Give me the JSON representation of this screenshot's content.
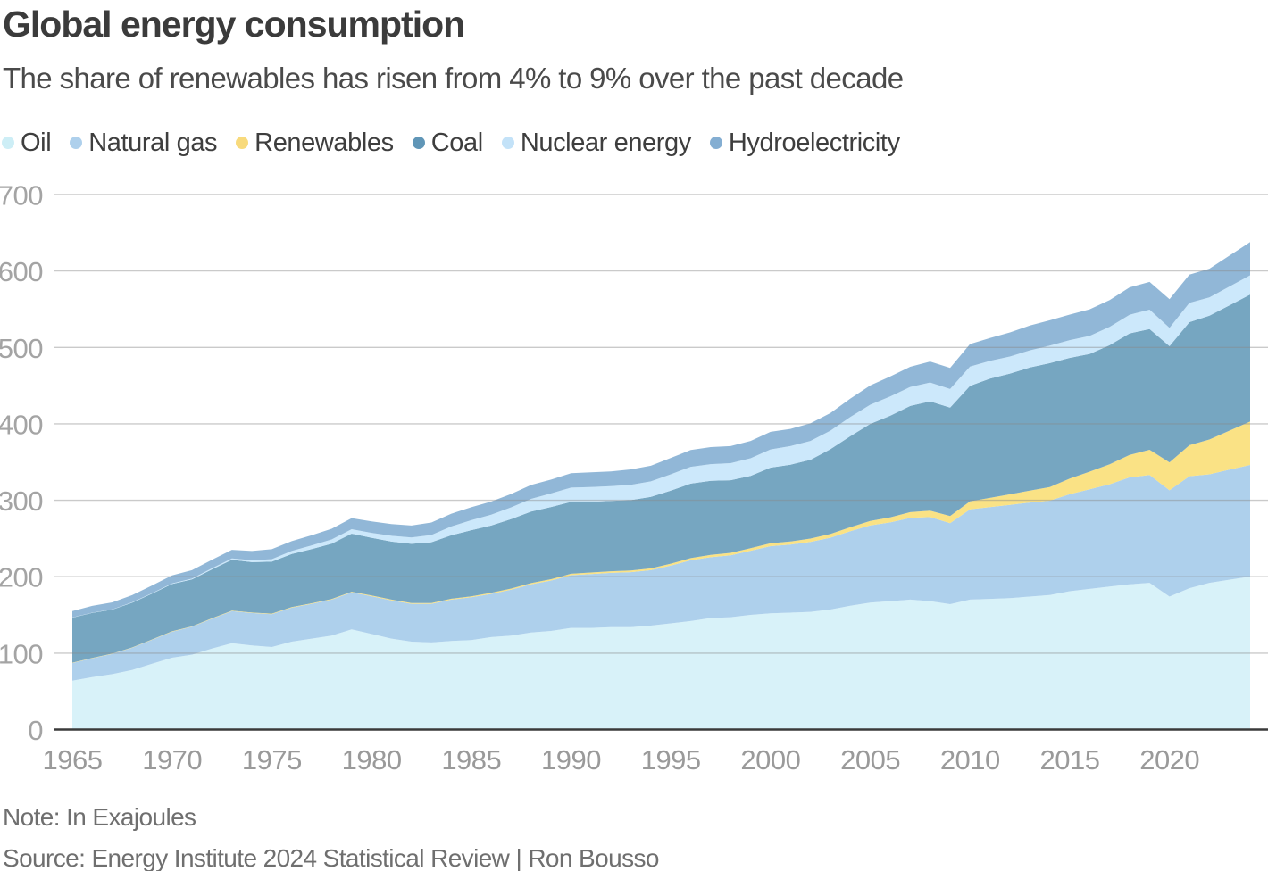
{
  "header": {
    "title": "Global energy consumption",
    "subtitle": "The share of renewables has risen from 4% to 9% over the past decade"
  },
  "legend": [
    {
      "label": "Oil",
      "color": "#cdeef6"
    },
    {
      "label": "Natural gas",
      "color": "#aed0ec"
    },
    {
      "label": "Renewables",
      "color": "#f8da7c"
    },
    {
      "label": "Coal",
      "color": "#6096b7"
    },
    {
      "label": "Nuclear energy",
      "color": "#c3e2f8"
    },
    {
      "label": "Hydroelectricity",
      "color": "#84aed2"
    }
  ],
  "footer": {
    "note": "Note: In Exajoules",
    "source": "Source: Energy Institute 2024 Statistical Review | Ron Bousso"
  },
  "chart_data": {
    "type": "area",
    "stacked": true,
    "title": "Global energy consumption",
    "unit": "Exajoules",
    "ylabel": "",
    "xlabel": "",
    "grid": "horizontal",
    "legend_position": "top",
    "ylim": [
      0,
      700
    ],
    "yticks": [
      0,
      100,
      200,
      300,
      400,
      500,
      600,
      700
    ],
    "xticks": [
      1965,
      1970,
      1975,
      1980,
      1985,
      1990,
      1995,
      2000,
      2005,
      2010,
      2015,
      2020
    ],
    "x": [
      1965,
      1966,
      1967,
      1968,
      1969,
      1970,
      1971,
      1972,
      1973,
      1974,
      1975,
      1976,
      1977,
      1978,
      1979,
      1980,
      1981,
      1982,
      1983,
      1984,
      1985,
      1986,
      1987,
      1988,
      1989,
      1990,
      1991,
      1992,
      1993,
      1994,
      1995,
      1996,
      1997,
      1998,
      1999,
      2000,
      2001,
      2002,
      2003,
      2004,
      2005,
      2006,
      2007,
      2008,
      2009,
      2010,
      2011,
      2012,
      2013,
      2014,
      2015,
      2016,
      2017,
      2018,
      2019,
      2020,
      2021,
      2022,
      2023
    ],
    "series": [
      {
        "name": "Oil",
        "color": "#d8f2f9",
        "values": [
          64,
          68.5,
          72.5,
          78,
          86,
          94,
          98,
          106,
          113,
          110,
          108,
          115,
          119,
          123,
          131,
          125,
          119,
          115,
          114,
          116,
          117,
          121,
          123,
          127,
          129,
          133,
          133,
          134,
          134,
          136,
          139,
          142,
          146,
          147,
          150,
          152,
          153,
          154,
          157,
          162,
          166,
          168,
          170,
          168,
          164,
          170,
          171,
          172,
          174,
          176,
          181,
          184,
          187,
          190,
          192,
          174,
          185,
          192,
          196
        ]
      },
      {
        "name": "Natural gas",
        "color": "#aed0ec",
        "values": [
          23,
          24.8,
          26.5,
          29,
          31.5,
          34,
          36.5,
          39,
          42,
          42.5,
          43,
          44.5,
          45.5,
          47,
          48.5,
          49.5,
          50,
          49.5,
          50.5,
          54,
          56,
          56.5,
          60,
          63,
          66,
          69,
          70.5,
          71,
          72,
          72.5,
          75.5,
          79.5,
          79.5,
          81,
          84,
          88,
          89,
          91.5,
          94,
          97.5,
          101,
          103,
          107,
          110,
          106,
          118,
          120,
          122,
          123,
          123.5,
          127,
          130.5,
          134,
          140,
          141,
          139,
          146.5,
          142,
          144
        ]
      },
      {
        "name": "Renewables",
        "color": "#fae285",
        "values": [
          0.4,
          0.4,
          0.4,
          0.45,
          0.45,
          0.5,
          0.5,
          0.55,
          0.55,
          0.6,
          0.65,
          0.7,
          0.7,
          0.75,
          0.8,
          0.9,
          0.95,
          1,
          1.1,
          1.2,
          1.3,
          1.4,
          1.5,
          1.6,
          1.7,
          1.9,
          2,
          2.1,
          2.2,
          2.4,
          2.6,
          2.8,
          3,
          3.2,
          3.4,
          3.7,
          4,
          4.4,
          4.8,
          5.3,
          5.9,
          6.6,
          7.4,
          8.3,
          9.3,
          10.6,
          12.1,
          13.8,
          15.7,
          17.9,
          20.3,
          23,
          26,
          29.3,
          33,
          36.6,
          40.5,
          45.5,
          51
        ]
      },
      {
        "name": "Coal",
        "color": "#76a6c1",
        "values": [
          59,
          59,
          57.5,
          58.5,
          60,
          62,
          61.5,
          64,
          66.5,
          66,
          68,
          69.5,
          71,
          72.5,
          76,
          75.5,
          76,
          77.5,
          79.5,
          83,
          86.5,
          88,
          91,
          93.5,
          94.5,
          94,
          92.5,
          92,
          92,
          93.5,
          95.5,
          97.5,
          97,
          95,
          94.5,
          99,
          100.5,
          103,
          111,
          119,
          127,
          133,
          139,
          143,
          142,
          151,
          156,
          158,
          161,
          162,
          158,
          154,
          156,
          159,
          158,
          152,
          161,
          162,
          164
        ]
      },
      {
        "name": "Nuclear energy",
        "color": "#cce8fb",
        "values": [
          0.2,
          0.3,
          0.4,
          0.5,
          0.6,
          0.7,
          1,
          1.4,
          1.8,
          2.5,
          3.3,
          4,
          4.8,
          5.5,
          5.8,
          6.4,
          7.6,
          8.3,
          9.5,
          11.5,
          13.1,
          14.1,
          15.3,
          16.7,
          17.7,
          18.6,
          19.2,
          19.4,
          20,
          20.3,
          21.3,
          22,
          21.8,
          22.3,
          23.1,
          23.8,
          24.4,
          24.7,
          24.2,
          25.1,
          25.1,
          25.3,
          24.9,
          24.8,
          24.3,
          25.3,
          23.2,
          22.3,
          22.4,
          22.9,
          23.2,
          23.6,
          23.9,
          24.4,
          25.4,
          24,
          25.3,
          24,
          24.6
        ]
      },
      {
        "name": "Hydroelectricity",
        "color": "#91b7d7",
        "values": [
          8.4,
          8.8,
          9.1,
          9.4,
          10,
          10.5,
          11,
          11.2,
          11.3,
          12.1,
          13,
          12.8,
          13.2,
          14,
          14.5,
          15,
          15.3,
          15.6,
          16.3,
          16.7,
          17,
          17.3,
          17.5,
          18.2,
          18.1,
          18.8,
          19.3,
          19.3,
          20.2,
          20.4,
          21.5,
          21.9,
          22.2,
          22.3,
          22.6,
          23,
          22.5,
          23,
          23,
          24.2,
          25.2,
          26,
          26.3,
          27.4,
          27.5,
          29.5,
          30,
          31.5,
          32.5,
          33.2,
          33.5,
          34.7,
          35,
          35.9,
          36.3,
          37.6,
          37,
          37.5,
          40.4
        ]
      }
    ]
  },
  "colors": {
    "grid_line": "#c6c6c6",
    "axis_line": "#3a3a3a",
    "y_tick_label": "#a4a4a4",
    "x_tick_label": "#9a9a9a"
  }
}
